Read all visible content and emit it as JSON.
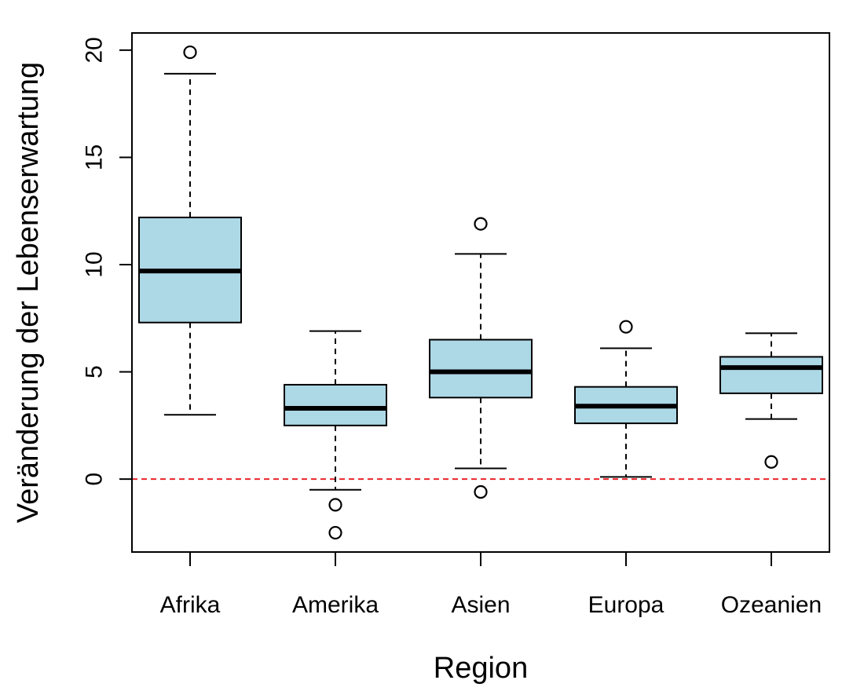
{
  "chart_data": {
    "type": "boxplot",
    "xlabel": "Region",
    "ylabel": "Veränderung der Lebenserwartung",
    "categories": [
      "Afrika",
      "Amerika",
      "Asien",
      "Europa",
      "Ozeanien"
    ],
    "ylim": [
      -3.4,
      20.8
    ],
    "yticks": [
      "0",
      "5",
      "10",
      "15",
      "20"
    ],
    "ytick_values": [
      0,
      5,
      10,
      15,
      20
    ],
    "grid": false,
    "box_color": "#add8e6",
    "reference_line": {
      "y": 0,
      "color": "#e8262a",
      "style": "dashed"
    },
    "boxes": [
      {
        "category": "Afrika",
        "whisker_low": 3.0,
        "q1": 7.3,
        "median": 9.7,
        "q3": 12.2,
        "whisker_high": 18.9,
        "outliers": [
          19.9
        ]
      },
      {
        "category": "Amerika",
        "whisker_low": -0.5,
        "q1": 2.5,
        "median": 3.3,
        "q3": 4.4,
        "whisker_high": 6.9,
        "outliers": [
          -1.2,
          -2.5
        ]
      },
      {
        "category": "Asien",
        "whisker_low": 0.5,
        "q1": 3.8,
        "median": 5.0,
        "q3": 6.5,
        "whisker_high": 10.5,
        "outliers": [
          11.9,
          -0.6
        ]
      },
      {
        "category": "Europa",
        "whisker_low": 0.1,
        "q1": 2.6,
        "median": 3.4,
        "q3": 4.3,
        "whisker_high": 6.1,
        "outliers": [
          7.1
        ]
      },
      {
        "category": "Ozeanien",
        "whisker_low": 2.8,
        "q1": 4.0,
        "median": 5.2,
        "q3": 5.7,
        "whisker_high": 6.8,
        "outliers": [
          0.8
        ]
      }
    ]
  }
}
